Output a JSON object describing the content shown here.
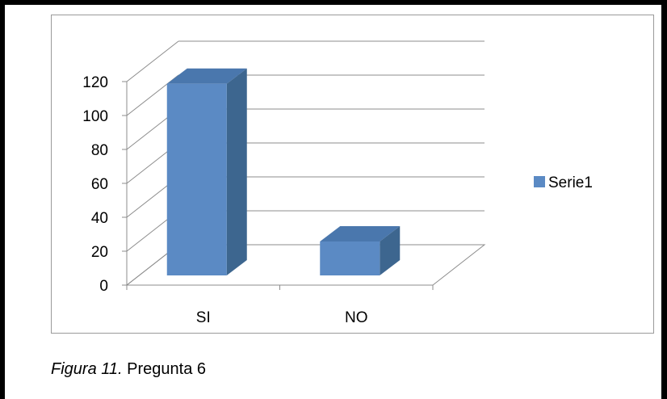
{
  "caption": {
    "figure_label": "Figura 11.",
    "text": "Pregunta 6"
  },
  "colors": {
    "bar_front": "#5b8ac4",
    "bar_side": "#3d668f",
    "bar_top": "#4a77ad",
    "grid": "#8c8c8c",
    "text": "#000000"
  },
  "chart_data": {
    "type": "bar",
    "style": "3d-column",
    "categories": [
      "SI",
      "NO"
    ],
    "series": [
      {
        "name": "Serie1",
        "values": [
          113,
          20
        ]
      }
    ],
    "ylim": [
      0,
      120
    ],
    "yticks": [
      "0",
      "20",
      "40",
      "60",
      "80",
      "100",
      "120"
    ],
    "grid": true,
    "legend": "right"
  }
}
